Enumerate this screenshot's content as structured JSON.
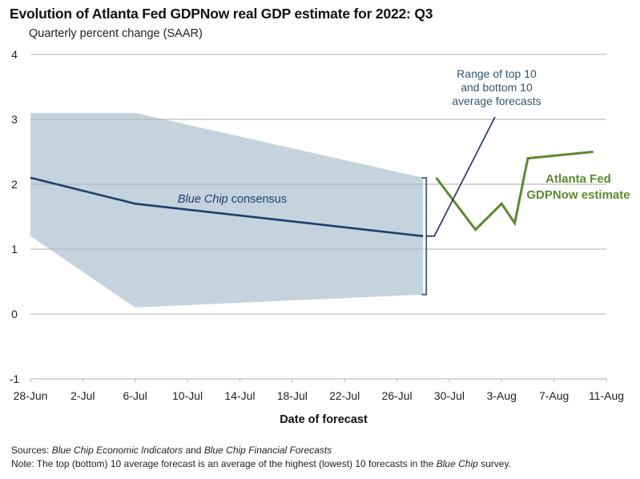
{
  "chart_data": {
    "type": "line",
    "title": "Evolution of Atlanta Fed GDPNow real GDP estimate for 2022: Q3",
    "subtitle": "Quarterly percent change (SAAR)",
    "xlabel": "Date of forecast",
    "ylabel": "",
    "ylim": [
      -1,
      4
    ],
    "yticks": [
      -1,
      0,
      1,
      2,
      3,
      4
    ],
    "x_start_label": "28-Jun",
    "x_range_days": [
      0,
      44
    ],
    "xticks": [
      {
        "day": 0,
        "label": "28-Jun"
      },
      {
        "day": 4,
        "label": "2-Jul"
      },
      {
        "day": 8,
        "label": "6-Jul"
      },
      {
        "day": 12,
        "label": "10-Jul"
      },
      {
        "day": 16,
        "label": "14-Jul"
      },
      {
        "day": 20,
        "label": "18-Jul"
      },
      {
        "day": 24,
        "label": "22-Jul"
      },
      {
        "day": 28,
        "label": "26-Jul"
      },
      {
        "day": 32,
        "label": "30-Jul"
      },
      {
        "day": 36,
        "label": "3-Aug"
      },
      {
        "day": 40,
        "label": "7-Aug"
      },
      {
        "day": 44,
        "label": "11-Aug"
      }
    ],
    "grid": true,
    "band": {
      "name": "Range of top 10 and bottom 10 average forecasts",
      "color": "#c5d3dc",
      "points": [
        {
          "day": 0,
          "low": 1.2,
          "high": 3.1
        },
        {
          "day": 8,
          "low": 0.1,
          "high": 3.1
        },
        {
          "day": 30,
          "low": 0.3,
          "high": 2.1
        }
      ]
    },
    "series": [
      {
        "name": "Blue Chip consensus",
        "color": "#1b3f6e",
        "points": [
          {
            "day": 0,
            "value": 2.1
          },
          {
            "day": 8,
            "value": 1.7
          },
          {
            "day": 30,
            "value": 1.2
          }
        ]
      },
      {
        "name": "Atlanta Fed GDPNow estimate",
        "color": "#5b8a2e",
        "points": [
          {
            "day": 31,
            "value": 2.1
          },
          {
            "day": 34,
            "value": 1.3
          },
          {
            "day": 36,
            "value": 1.7
          },
          {
            "day": 37,
            "value": 1.4
          },
          {
            "day": 38,
            "value": 2.4
          },
          {
            "day": 43,
            "value": 2.5
          }
        ]
      }
    ],
    "annotations": {
      "range_label": [
        "Range of top 10",
        "and bottom 10",
        "average forecasts"
      ],
      "bluechip_label_italic": "Blue Chip",
      "bluechip_label_rest": " consensus",
      "gdpnow_label": [
        "Atlanta Fed",
        "GDPNow estimate"
      ]
    },
    "colors": {
      "band": "#c5d3dc",
      "bluechip": "#1b3f6e",
      "gdpnow": "#5b8a2e",
      "bracket": "#3a5f80",
      "range_text": "#2f5679",
      "grid": "#c8c8c8"
    }
  },
  "footer": {
    "sources_label": "Sources:",
    "sources_italic1": "Blue Chip Economic Indicators",
    "sources_mid": " and ",
    "sources_italic2": "Blue Chip Financial Forecasts",
    "note_label": "Note:",
    "note_text": " The top (bottom) 10 average forecast is an average of the highest (lowest) 10 forecasts in the ",
    "note_italic": "Blue Chip",
    "note_end": " survey."
  }
}
